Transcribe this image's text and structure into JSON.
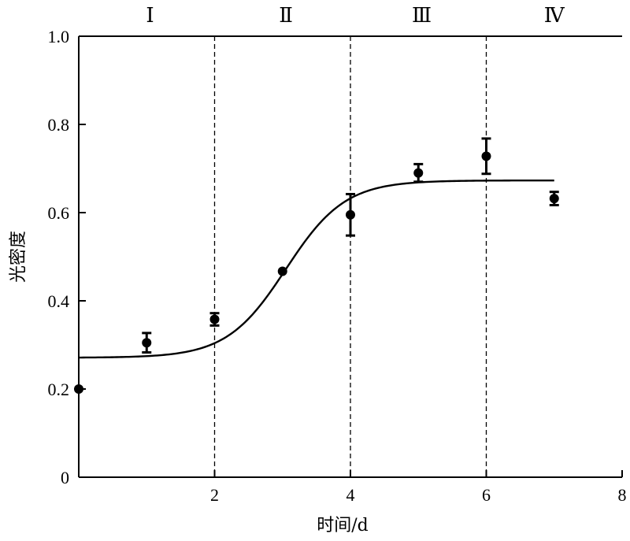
{
  "chart_data": {
    "type": "scatter",
    "xlabel": "时间/d",
    "ylabel": "光密度",
    "xlim": [
      0,
      8
    ],
    "ylim": [
      0,
      1.0
    ],
    "x_ticks": [
      2,
      4,
      6,
      8
    ],
    "x_tick_labels": [
      "2",
      "4",
      "6",
      "8"
    ],
    "y_ticks": [
      0,
      0.2,
      0.4,
      0.6,
      0.8,
      1.0
    ],
    "y_tick_labels": [
      "0",
      "0.2",
      "0.4",
      "0.6",
      "0.8",
      "1.0"
    ],
    "grid": false,
    "phase_boundaries": [
      2,
      4,
      6
    ],
    "phase_labels": [
      {
        "label": "Ⅰ",
        "x": 1.05
      },
      {
        "label": "Ⅱ",
        "x": 3.05
      },
      {
        "label": "Ⅲ",
        "x": 5.05
      },
      {
        "label": "Ⅳ",
        "x": 7.0
      }
    ],
    "points": [
      {
        "x": 0,
        "y": 0.2,
        "err": 0
      },
      {
        "x": 1,
        "y": 0.305,
        "err": 0.022
      },
      {
        "x": 2,
        "y": 0.358,
        "err": 0.014
      },
      {
        "x": 3,
        "y": 0.467,
        "err": 0
      },
      {
        "x": 4,
        "y": 0.595,
        "err": 0.047
      },
      {
        "x": 5,
        "y": 0.69,
        "err": 0.02
      },
      {
        "x": 6,
        "y": 0.728,
        "err": 0.04
      },
      {
        "x": 7,
        "y": 0.632,
        "err": 0.015
      }
    ],
    "fit_curve": {
      "model": "logistic",
      "lower": 0.271,
      "upper": 0.673,
      "midpoint": 3.05,
      "slope": 2.3,
      "x_range": [
        0,
        7
      ]
    }
  }
}
